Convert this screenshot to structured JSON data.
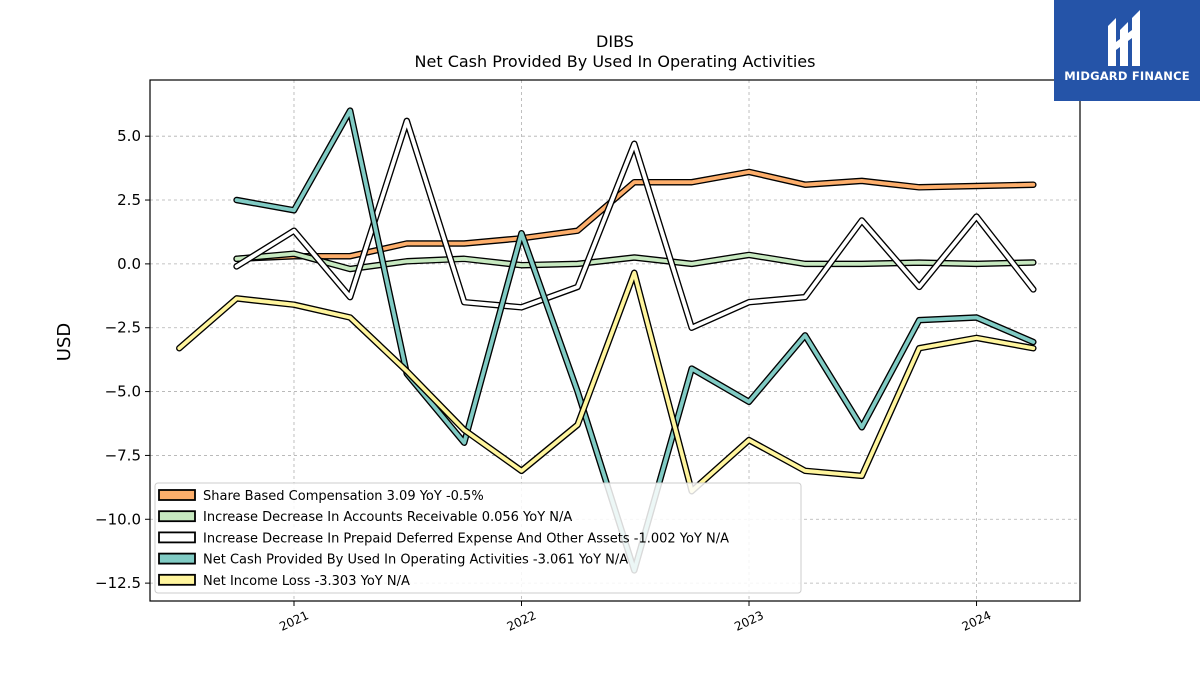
{
  "chart_data": {
    "type": "line",
    "title": "DIBS",
    "subtitle": "Net Cash Provided By Used In Operating Activities",
    "ylabel": "USD",
    "xlabel": "",
    "x": [
      "2020-07-01",
      "2020-10-01",
      "2021-01-01",
      "2021-04-01",
      "2021-07-01",
      "2021-10-01",
      "2022-01-01",
      "2022-04-01",
      "2022-07-01",
      "2022-10-01",
      "2023-01-01",
      "2023-04-01",
      "2023-07-01",
      "2023-10-01",
      "2024-01-01",
      "2024-04-01"
    ],
    "x_ticks": [
      "2021",
      "2022",
      "2023",
      "2024"
    ],
    "y_ticks": [
      "5.0",
      "2.5",
      "0.0",
      "−2.5",
      "−5.0",
      "−7.5",
      "−10.0",
      "−12.5"
    ],
    "ylim": [
      -13.2,
      7.2
    ],
    "grid": true,
    "legend_position": "lower-left",
    "series": [
      {
        "name": "Share Based Compensation",
        "legend_label": "Share Based Compensation  3.09 YoY -0.5%",
        "color": "#fdae6b",
        "values": [
          null,
          0.2,
          0.3,
          0.3,
          0.8,
          0.8,
          1.0,
          1.3,
          3.2,
          3.2,
          3.6,
          3.1,
          3.25,
          3.0,
          3.05,
          3.1
        ]
      },
      {
        "name": "Increase Decrease In Accounts Receivable",
        "legend_label": "Increase Decrease In Accounts Receivable  0.056 YoY N/A",
        "color": "#c7e9c0",
        "values": [
          null,
          0.2,
          0.4,
          -0.2,
          0.1,
          0.2,
          -0.05,
          0.0,
          0.25,
          0.0,
          0.35,
          0.0,
          0.0,
          0.05,
          0.0,
          0.056
        ]
      },
      {
        "name": "Increase Decrease In Prepaid Deferred Expense And Other Assets",
        "legend_label": "Increase Decrease In Prepaid Deferred Expense And Other Assets  -1.002 YoY N/A",
        "color": "#ffffff",
        "values": [
          null,
          -0.1,
          1.3,
          -1.3,
          5.6,
          -1.5,
          -1.7,
          -0.9,
          4.7,
          -2.5,
          -1.5,
          -1.3,
          1.7,
          -0.9,
          1.85,
          -1.0
        ]
      },
      {
        "name": "Net Cash Provided By Used In Operating Activities",
        "legend_label": "Net Cash Provided By Used In Operating Activities  -3.061 YoY N/A",
        "color": "#80cbc4",
        "values": [
          null,
          2.5,
          2.1,
          6.0,
          -4.3,
          -7.0,
          1.2,
          -5.0,
          -12.0,
          -4.1,
          -5.4,
          -2.8,
          -6.4,
          -2.2,
          -2.1,
          -3.06
        ]
      },
      {
        "name": "Net Income Loss",
        "legend_label": "Net Income Loss  -3.303 YoY N/A",
        "color": "#fff59d",
        "values": [
          -3.3,
          -1.35,
          -1.6,
          -2.1,
          -4.2,
          -6.5,
          -8.1,
          -6.3,
          -0.35,
          -8.9,
          -6.9,
          -8.1,
          -8.3,
          -3.3,
          -2.9,
          -3.3
        ]
      }
    ]
  },
  "logo": {
    "text": "MIDGARD FINANCE",
    "color": "#2554a8"
  }
}
